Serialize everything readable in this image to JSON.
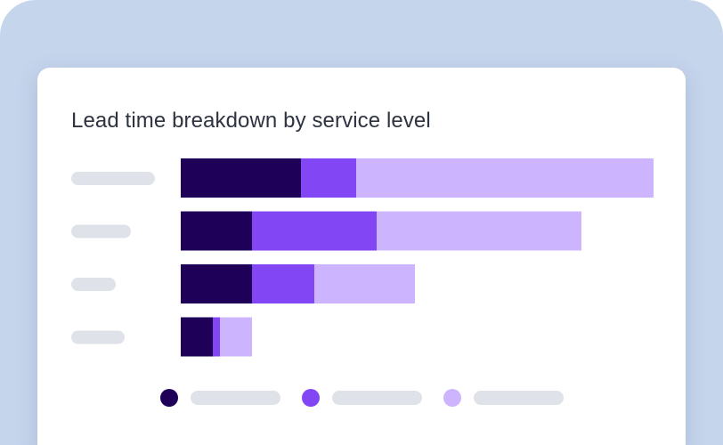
{
  "colors": {
    "background": "#c5d5ec",
    "card": "#ffffff",
    "placeholder": "#dfe2e8",
    "text": "#2d3340"
  },
  "chart_data": {
    "type": "bar",
    "orientation": "horizontal",
    "stacked": true,
    "title": "Lead time breakdown by service level",
    "categories": [
      "",
      "",
      "",
      ""
    ],
    "category_placeholder_widths": [
      0.7,
      0.5,
      0.37,
      0.45
    ],
    "series": [
      {
        "name": "",
        "color": "#1e0058",
        "values": [
          135,
          80,
          80,
          36
        ]
      },
      {
        "name": "",
        "color": "#8246f4",
        "values": [
          62,
          140,
          70,
          8
        ]
      },
      {
        "name": "",
        "color": "#cdb4ff",
        "values": [
          334,
          230,
          113,
          36
        ]
      }
    ],
    "xlim": [
      0,
      531
    ],
    "grid": false,
    "legend": "bottom"
  }
}
